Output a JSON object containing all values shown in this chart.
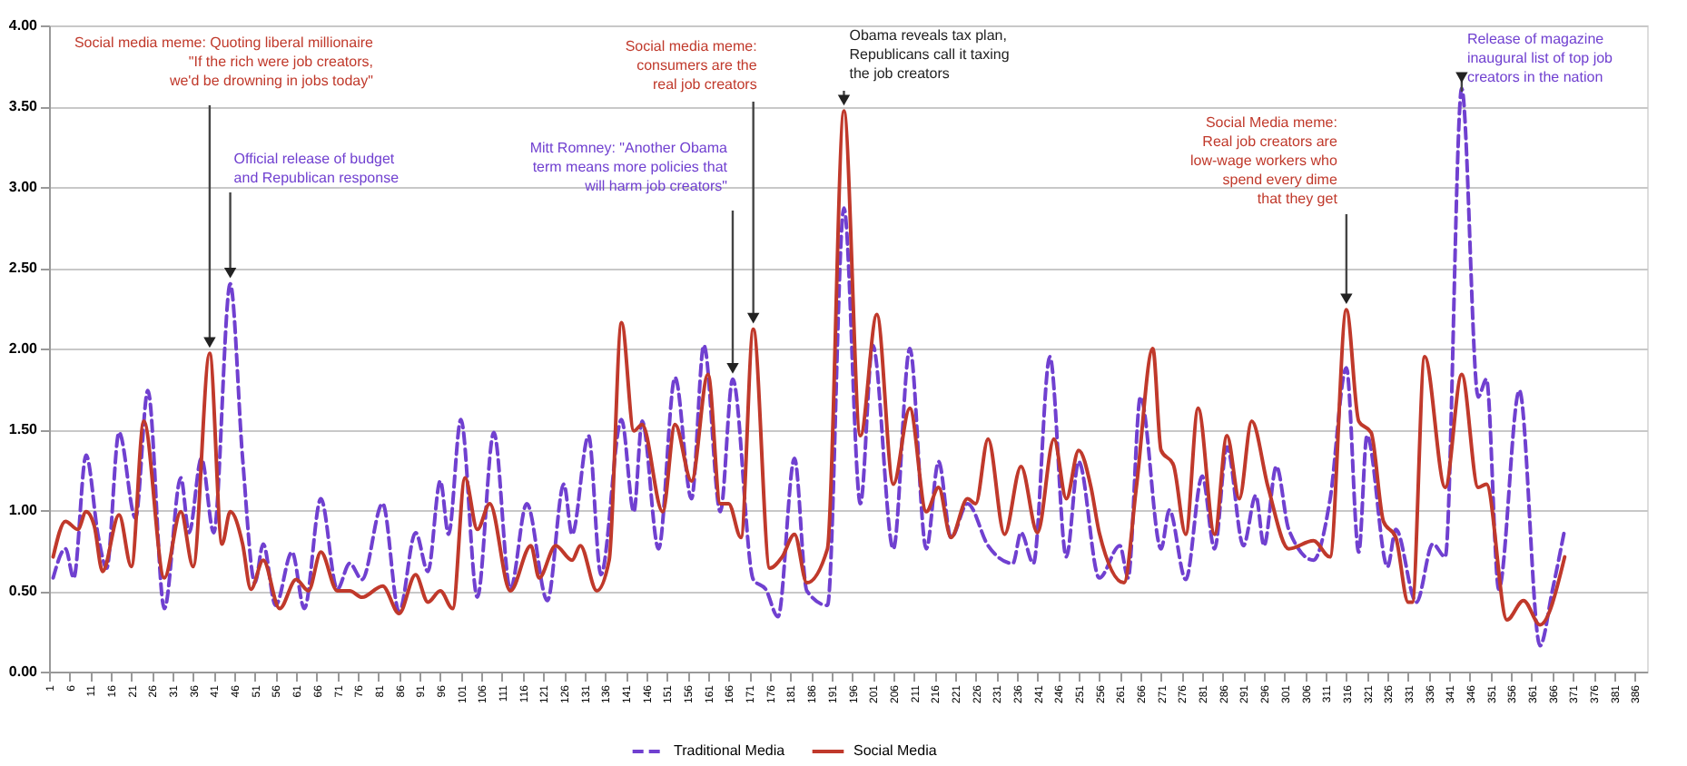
{
  "chart_data": {
    "type": "line",
    "xlim": [
      1,
      389
    ],
    "xticks": [
      1,
      6,
      11,
      16,
      21,
      26,
      31,
      36,
      41,
      46,
      51,
      56,
      61,
      66,
      71,
      76,
      81,
      86,
      91,
      96,
      101,
      106,
      111,
      116,
      121,
      126,
      131,
      136,
      141,
      146,
      151,
      156,
      161,
      166,
      171,
      176,
      181,
      186,
      191,
      196,
      201,
      206,
      211,
      216,
      221,
      226,
      231,
      236,
      241,
      246,
      251,
      256,
      261,
      266,
      271,
      276,
      281,
      286,
      291,
      296,
      301,
      306,
      311,
      316,
      321,
      326,
      331,
      336,
      341,
      346,
      351,
      356,
      361,
      366,
      371,
      376,
      381,
      386
    ],
    "ylim": [
      0,
      4
    ],
    "yticks": [
      {
        "value": 0,
        "label": "0.00"
      },
      {
        "value": 0.5,
        "label": "0.50"
      },
      {
        "value": 1,
        "label": "1.00"
      },
      {
        "value": 1.5,
        "label": "1.50"
      },
      {
        "value": 2,
        "label": "2.00"
      },
      {
        "value": 2.5,
        "label": "2.50"
      },
      {
        "value": 3,
        "label": "3.00"
      },
      {
        "value": 3.5,
        "label": "3.50"
      },
      {
        "value": 4,
        "label": "4.00"
      }
    ],
    "grid": "y",
    "legend": "bottom",
    "series": [
      {
        "name": "Traditional Media",
        "color": "#7040d0",
        "line_style": "dashed",
        "x": [
          2,
          5,
          7,
          10,
          13,
          15,
          18,
          22,
          25,
          29,
          33,
          35,
          38,
          41,
          45,
          48,
          51,
          53,
          56,
          60,
          63,
          67,
          71,
          74,
          77,
          82,
          86,
          90,
          93,
          96,
          98,
          101,
          105,
          109,
          113,
          117,
          122,
          126,
          128,
          132,
          135,
          140,
          143,
          145,
          149,
          153,
          157,
          160,
          164,
          167,
          172,
          175,
          178,
          182,
          185,
          190,
          194,
          198,
          201,
          206,
          210,
          214,
          217,
          220,
          224,
          229,
          235,
          237,
          240,
          244,
          248,
          251,
          256,
          261,
          263,
          266,
          271,
          273,
          277,
          281,
          284,
          287,
          291,
          294,
          296,
          299,
          302,
          308,
          312,
          316,
          319,
          321,
          326,
          328,
          333,
          337,
          340,
          344,
          348,
          350,
          353,
          358,
          363,
          366,
          369
        ],
        "values": [
          0.58,
          0.76,
          0.58,
          1.34,
          0.83,
          0.64,
          1.48,
          0.95,
          1.74,
          0.39,
          1.2,
          0.86,
          1.32,
          0.86,
          2.4,
          1.32,
          0.55,
          0.79,
          0.41,
          0.74,
          0.39,
          1.07,
          0.51,
          0.67,
          0.57,
          1.04,
          0.37,
          0.86,
          0.62,
          1.18,
          0.85,
          1.56,
          0.46,
          1.48,
          0.51,
          1.04,
          0.44,
          1.16,
          0.85,
          1.46,
          0.6,
          1.56,
          0.99,
          1.55,
          0.76,
          1.82,
          1.07,
          2.02,
          0.99,
          1.81,
          0.57,
          0.51,
          0.34,
          1.32,
          0.5,
          0.41,
          2.87,
          1.04,
          2.02,
          0.76,
          2.0,
          0.76,
          1.3,
          0.83,
          1.04,
          0.78,
          0.67,
          0.86,
          0.67,
          1.95,
          0.71,
          1.3,
          0.58,
          0.78,
          0.58,
          1.7,
          0.76,
          1.0,
          0.57,
          1.21,
          0.76,
          1.39,
          0.78,
          1.09,
          0.78,
          1.27,
          0.88,
          0.69,
          1.06,
          1.88,
          0.74,
          1.46,
          0.65,
          0.88,
          0.43,
          0.79,
          0.71,
          3.61,
          1.7,
          1.81,
          0.51,
          1.74,
          0.16,
          0.5,
          0.88
        ]
      },
      {
        "name": "Social Media",
        "color": "#c0392b",
        "line_style": "solid",
        "x": [
          2,
          5,
          8,
          10,
          12,
          14,
          18,
          21,
          24,
          29,
          33,
          36,
          40,
          43,
          45,
          48,
          50,
          53,
          57,
          61,
          64,
          67,
          71,
          74,
          77,
          82,
          86,
          90,
          93,
          96,
          99,
          102,
          105,
          108,
          113,
          118,
          120,
          124,
          128,
          130,
          134,
          137,
          140,
          143,
          145,
          150,
          153,
          157,
          161,
          164,
          166,
          169,
          172,
          176,
          179,
          182,
          185,
          190,
          194,
          198,
          202,
          206,
          210,
          214,
          217,
          220,
          224,
          226,
          229,
          233,
          237,
          241,
          245,
          248,
          251,
          254,
          256,
          262,
          265,
          269,
          271,
          274,
          277,
          280,
          284,
          287,
          290,
          293,
          297,
          302,
          308,
          312,
          316,
          319,
          322,
          325,
          328,
          331,
          332,
          335,
          340,
          344,
          348,
          350,
          355,
          359,
          363,
          369
        ],
        "values": [
          0.71,
          0.93,
          0.88,
          0.99,
          0.9,
          0.62,
          0.97,
          0.65,
          1.55,
          0.58,
          0.99,
          0.65,
          1.97,
          0.79,
          0.99,
          0.79,
          0.51,
          0.69,
          0.39,
          0.57,
          0.5,
          0.74,
          0.5,
          0.5,
          0.46,
          0.53,
          0.36,
          0.6,
          0.43,
          0.5,
          0.39,
          1.2,
          0.88,
          1.04,
          0.5,
          0.78,
          0.58,
          0.78,
          0.69,
          0.78,
          0.5,
          0.69,
          2.16,
          1.49,
          1.53,
          0.99,
          1.53,
          1.18,
          1.84,
          1.04,
          1.04,
          0.83,
          2.12,
          0.64,
          0.71,
          0.85,
          0.55,
          0.76,
          3.47,
          1.46,
          2.21,
          1.16,
          1.63,
          0.99,
          1.14,
          0.83,
          1.07,
          1.04,
          1.44,
          0.85,
          1.27,
          0.86,
          1.44,
          1.07,
          1.37,
          1.14,
          0.86,
          0.55,
          1.14,
          2.0,
          1.37,
          1.28,
          0.85,
          1.63,
          0.85,
          1.46,
          1.07,
          1.55,
          1.14,
          0.76,
          0.81,
          0.71,
          2.24,
          1.55,
          1.48,
          0.93,
          0.83,
          0.43,
          0.43,
          1.95,
          1.14,
          1.84,
          1.14,
          1.16,
          0.32,
          0.44,
          0.29,
          0.71
        ]
      }
    ],
    "annotations": [
      {
        "text": "Social media meme:  Quoting liberal millionaire\n\"If the rich were job creators,\nwe'd be drowning in jobs today\"",
        "x": 40,
        "y": 1.97
      },
      {
        "text": "Official release of budget\nand Republican response",
        "x": 45,
        "y": 2.4
      },
      {
        "text": "Mitt Romney: \"Another Obama\nterm means more policies that\nwill harm job creators\"",
        "x": 167,
        "y": 1.81
      },
      {
        "text": "Social media meme:\nconsumers are the\nreal job creators",
        "x": 172,
        "y": 2.12
      },
      {
        "text": "Obama reveals tax plan,\nRepublicans call it taxing\nthe job creators",
        "x": 194,
        "y": 3.47
      },
      {
        "text": "Social Media meme:\nReal job creators are\nlow-wage workers who\nspend every dime\nthat they get",
        "x": 316,
        "y": 2.24
      },
      {
        "text": "Release of magazine\ninaugural list of top job\ncreators in the nation",
        "x": 344,
        "y": 3.61
      }
    ]
  }
}
